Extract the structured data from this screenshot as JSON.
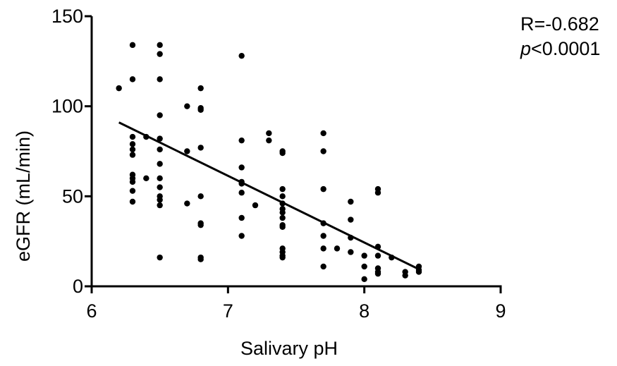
{
  "chart_data": {
    "type": "scatter",
    "xlabel": "Salivary pH",
    "ylabel": "eGFR (mL/min)",
    "xlim": [
      6,
      9
    ],
    "ylim": [
      0,
      150
    ],
    "x_ticks": [
      "6",
      "7",
      "8",
      "9"
    ],
    "y_ticks": [
      "0",
      "50",
      "100",
      "150"
    ],
    "grid": false,
    "annotation": {
      "r_text": "R=-0.682",
      "p_label": "p",
      "p_value": "<0.0001"
    },
    "trendline": {
      "x": [
        6.2,
        8.4
      ],
      "y": [
        91,
        9.5
      ]
    },
    "points": [
      [
        6.2,
        110
      ],
      [
        6.3,
        134
      ],
      [
        6.3,
        115
      ],
      [
        6.3,
        83
      ],
      [
        6.3,
        79
      ],
      [
        6.3,
        76
      ],
      [
        6.3,
        73
      ],
      [
        6.3,
        62
      ],
      [
        6.3,
        60
      ],
      [
        6.3,
        58
      ],
      [
        6.3,
        53
      ],
      [
        6.3,
        47
      ],
      [
        6.4,
        83
      ],
      [
        6.4,
        60
      ],
      [
        6.5,
        134
      ],
      [
        6.5,
        129
      ],
      [
        6.5,
        115
      ],
      [
        6.5,
        95
      ],
      [
        6.5,
        82
      ],
      [
        6.5,
        76
      ],
      [
        6.5,
        68
      ],
      [
        6.5,
        60
      ],
      [
        6.5,
        55
      ],
      [
        6.5,
        50
      ],
      [
        6.5,
        48
      ],
      [
        6.5,
        45
      ],
      [
        6.5,
        16
      ],
      [
        6.7,
        100
      ],
      [
        6.7,
        75
      ],
      [
        6.7,
        46
      ],
      [
        6.8,
        110
      ],
      [
        6.8,
        99
      ],
      [
        6.8,
        98
      ],
      [
        6.8,
        77
      ],
      [
        6.8,
        50
      ],
      [
        6.8,
        35
      ],
      [
        6.8,
        34
      ],
      [
        6.8,
        16
      ],
      [
        6.8,
        15
      ],
      [
        7.1,
        128
      ],
      [
        7.1,
        81
      ],
      [
        7.1,
        66
      ],
      [
        7.1,
        58
      ],
      [
        7.1,
        57
      ],
      [
        7.1,
        52
      ],
      [
        7.1,
        38
      ],
      [
        7.1,
        28
      ],
      [
        7.2,
        45
      ],
      [
        7.3,
        85
      ],
      [
        7.3,
        81
      ],
      [
        7.4,
        75
      ],
      [
        7.4,
        74
      ],
      [
        7.4,
        54
      ],
      [
        7.4,
        50
      ],
      [
        7.4,
        46
      ],
      [
        7.4,
        43
      ],
      [
        7.4,
        41
      ],
      [
        7.4,
        38
      ],
      [
        7.4,
        34
      ],
      [
        7.4,
        33
      ],
      [
        7.4,
        21
      ],
      [
        7.4,
        19
      ],
      [
        7.4,
        17
      ],
      [
        7.4,
        16
      ],
      [
        7.7,
        85
      ],
      [
        7.7,
        75
      ],
      [
        7.7,
        54
      ],
      [
        7.7,
        35
      ],
      [
        7.7,
        28
      ],
      [
        7.7,
        21
      ],
      [
        7.7,
        11
      ],
      [
        7.8,
        21
      ],
      [
        7.9,
        47
      ],
      [
        7.9,
        37
      ],
      [
        7.9,
        27
      ],
      [
        7.9,
        19
      ],
      [
        8.0,
        17
      ],
      [
        8.0,
        11
      ],
      [
        8.0,
        4
      ],
      [
        8.1,
        54
      ],
      [
        8.1,
        52
      ],
      [
        8.1,
        22
      ],
      [
        8.1,
        17
      ],
      [
        8.1,
        10
      ],
      [
        8.1,
        8
      ],
      [
        8.1,
        7
      ],
      [
        8.2,
        16
      ],
      [
        8.3,
        8
      ],
      [
        8.3,
        6
      ],
      [
        8.4,
        11
      ],
      [
        8.4,
        9
      ],
      [
        8.4,
        8
      ]
    ]
  }
}
